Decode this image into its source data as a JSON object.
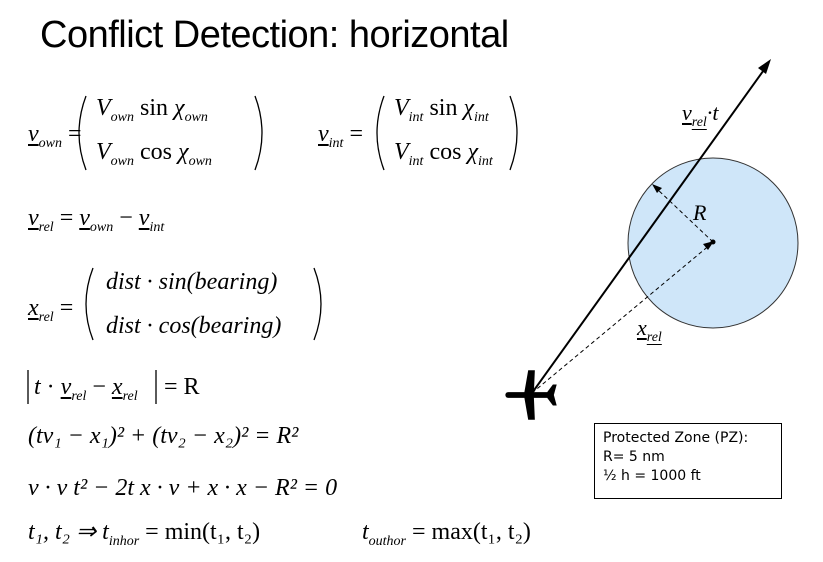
{
  "title": "Conflict Detection: horizontal",
  "symbols": {
    "v": "v",
    "x": "x",
    "t": "t",
    "R": "R",
    "V": "V",
    "own": "own",
    "int": "int",
    "rel": "rel",
    "sin": "sin",
    "cos": "cos",
    "chi": "χ",
    "eq": "=",
    "minus": "−",
    "dist": "dist",
    "bearing": "bearing"
  },
  "equations": {
    "vrel_rhs": "v",
    "xrel_row1": "dist · sin(bearing)",
    "xrel_row2": "dist · cos(bearing)",
    "abs_eq": "= R",
    "eq_components": "(tv₁ − x₁)² + (tv₂ − x₂)² = R²",
    "eq_quadratic": "v · v t² − 2t x · v + x · x − R² = 0",
    "eq_solution_left": "t₁, t₂ ⇒ t",
    "eq_solution_inhor_sub": "inhor",
    "eq_solution_inhor_rhs": "= min(t₁, t₂)",
    "eq_solution_outhor": "t",
    "eq_solution_outhor_sub": "outhor",
    "eq_solution_outhor_rhs": "= max(t₁, t₂)"
  },
  "diagram": {
    "vrel_t_label": "v",
    "vrel_t_sub": "rel",
    "vrel_t_suffix": "·t",
    "radius_label": "R",
    "xrel_label": "x",
    "xrel_sub": "rel",
    "aircraft_icon": "airplane-icon",
    "circle_color": "#cfe6f9"
  },
  "protected_zone": {
    "line1": "Protected Zone (PZ):",
    "line2": "R= 5 nm",
    "line3": "½ h = 1000 ft"
  }
}
